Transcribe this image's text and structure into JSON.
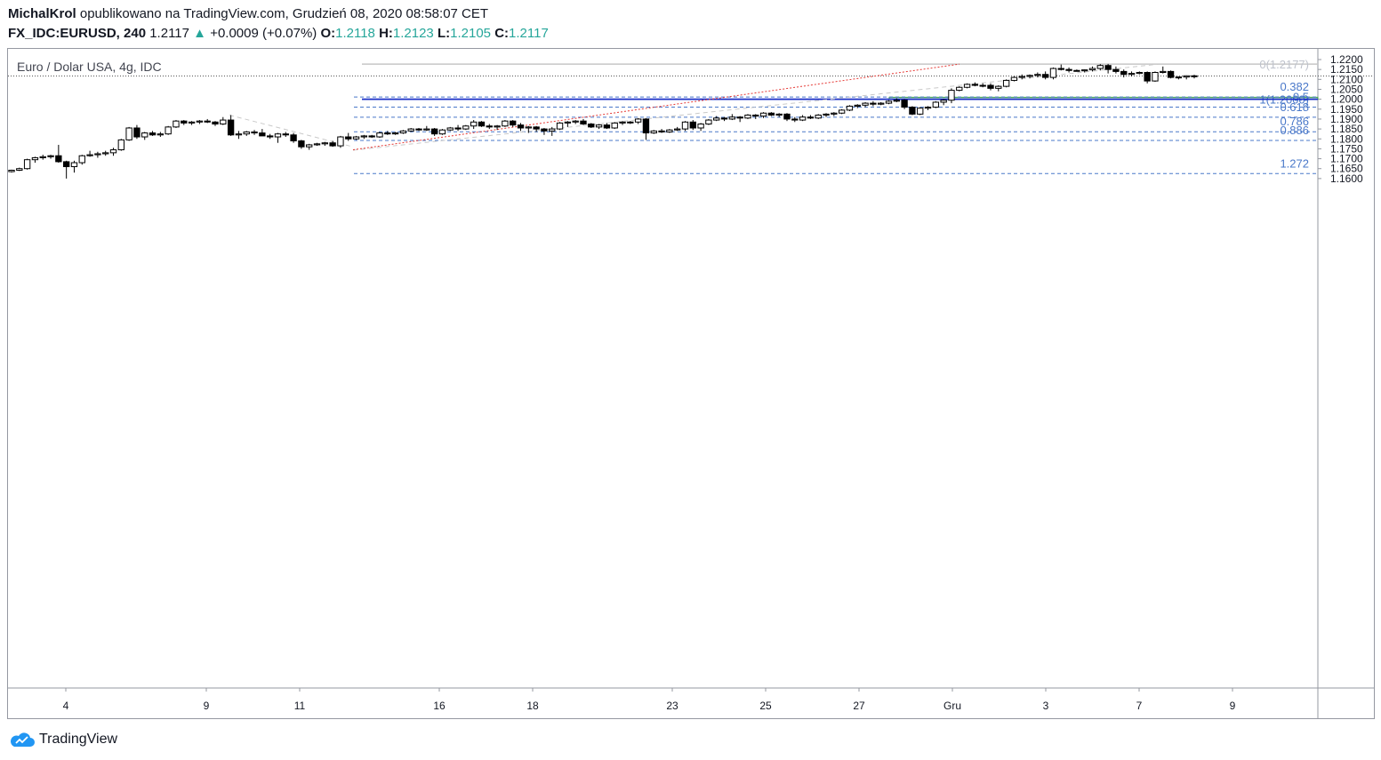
{
  "header": {
    "author": "MichalKrol",
    "published_text": "opublikowano na TradingView.com, Grudzień 08, 2020 08:58:07 CET",
    "symbol": "FX_IDC:EURUSD, 240",
    "last": "1.2117",
    "change": "+0.0009 (+0.07%)",
    "o_label": "O:",
    "o": "1.2118",
    "h_label": "H:",
    "h": "1.2123",
    "l_label": "L:",
    "l": "1.2105",
    "c_label": "C:",
    "c": "1.2117"
  },
  "chart_title": "Euro / Dolar USA, 4g, IDC",
  "footer": {
    "brand": "TradingView"
  },
  "colors": {
    "up_fill": "#ffffff",
    "down_fill": "#000000",
    "blue_level": "#1b2fc7",
    "fib": "#4a78c9",
    "zone_fill": "#bfe6bf",
    "zone_border": "#3fa34d",
    "red_line": "#e53935",
    "grey_line": "#c7c7c7",
    "accent_up": "#26a69a"
  },
  "chart_data": {
    "type": "candlestick",
    "ylim": [
      1.157,
      1.2215
    ],
    "y_ticks": [
      "1.2200",
      "1.2150",
      "1.2100",
      "1.2050",
      "1.2000",
      "1.1950",
      "1.1900",
      "1.1850",
      "1.1800",
      "1.1750",
      "1.1700",
      "1.1650",
      "1.1600"
    ],
    "x_ticks": [
      "4",
      "9",
      "11",
      "16",
      "18",
      "23",
      "25",
      "27",
      "Gru",
      "3",
      "7",
      "9"
    ],
    "fib_levels": [
      {
        "label": "0(1.2177)",
        "price": 1.2177
      },
      {
        "label": "0.382",
        "price": 1.2011
      },
      {
        "label": "1(1.2000)",
        "price": 1.2
      },
      {
        "label": "0.5",
        "price": 1.196
      },
      {
        "label": "0.618",
        "price": 1.1909
      },
      {
        "label": "0.786",
        "price": 1.1836
      },
      {
        "label": "0.886",
        "price": 1.1792
      },
      {
        "label": "1.272",
        "price": 1.1625
      }
    ],
    "horizontal_level": 1.2,
    "current_price": 1.2117,
    "zone": {
      "from": 1.2,
      "to": 1.201
    },
    "candles": [
      [
        1.1635,
        1.1645,
        1.163,
        1.1642
      ],
      [
        1.1642,
        1.1655,
        1.1638,
        1.165
      ],
      [
        1.165,
        1.17,
        1.1645,
        1.1695
      ],
      [
        1.1695,
        1.171,
        1.168,
        1.1705
      ],
      [
        1.1705,
        1.172,
        1.1695,
        1.171
      ],
      [
        1.171,
        1.172,
        1.17,
        1.1715
      ],
      [
        1.1715,
        1.177,
        1.168,
        1.1685
      ],
      [
        1.1685,
        1.169,
        1.16,
        1.166
      ],
      [
        1.166,
        1.169,
        1.163,
        1.168
      ],
      [
        1.168,
        1.172,
        1.167,
        1.1715
      ],
      [
        1.1715,
        1.174,
        1.171,
        1.172
      ],
      [
        1.172,
        1.1735,
        1.1705,
        1.1725
      ],
      [
        1.1725,
        1.174,
        1.1715,
        1.173
      ],
      [
        1.173,
        1.1755,
        1.1715,
        1.1745
      ],
      [
        1.1745,
        1.18,
        1.174,
        1.1795
      ],
      [
        1.1795,
        1.186,
        1.179,
        1.1855
      ],
      [
        1.1855,
        1.187,
        1.18,
        1.181
      ],
      [
        1.181,
        1.1835,
        1.1795,
        1.183
      ],
      [
        1.183,
        1.184,
        1.1815,
        1.182
      ],
      [
        1.182,
        1.1835,
        1.181,
        1.1825
      ],
      [
        1.1825,
        1.1865,
        1.182,
        1.186
      ],
      [
        1.186,
        1.1895,
        1.1855,
        1.189
      ],
      [
        1.189,
        1.1895,
        1.187,
        1.188
      ],
      [
        1.188,
        1.189,
        1.187,
        1.1885
      ],
      [
        1.1885,
        1.1895,
        1.1875,
        1.189
      ],
      [
        1.189,
        1.19,
        1.188,
        1.1885
      ],
      [
        1.1885,
        1.189,
        1.1865,
        1.1875
      ],
      [
        1.1875,
        1.191,
        1.187,
        1.1895
      ],
      [
        1.1895,
        1.192,
        1.1815,
        1.182
      ],
      [
        1.182,
        1.184,
        1.18,
        1.1825
      ],
      [
        1.1825,
        1.184,
        1.1815,
        1.1835
      ],
      [
        1.1835,
        1.1845,
        1.182,
        1.183
      ],
      [
        1.183,
        1.185,
        1.182,
        1.1815
      ],
      [
        1.1815,
        1.1825,
        1.18,
        1.181
      ],
      [
        1.181,
        1.183,
        1.178,
        1.1825
      ],
      [
        1.1825,
        1.1835,
        1.181,
        1.182
      ],
      [
        1.182,
        1.183,
        1.178,
        1.179
      ],
      [
        1.179,
        1.1795,
        1.175,
        1.176
      ],
      [
        1.176,
        1.1775,
        1.1745,
        1.177
      ],
      [
        1.177,
        1.178,
        1.1765,
        1.1775
      ],
      [
        1.1775,
        1.1785,
        1.1765,
        1.178
      ],
      [
        1.178,
        1.179,
        1.176,
        1.1765
      ],
      [
        1.1765,
        1.1815,
        1.1755,
        1.181
      ],
      [
        1.181,
        1.183,
        1.179,
        1.18
      ],
      [
        1.18,
        1.1815,
        1.1795,
        1.181
      ],
      [
        1.181,
        1.182,
        1.18,
        1.1815
      ],
      [
        1.1815,
        1.182,
        1.1805,
        1.181
      ],
      [
        1.181,
        1.1835,
        1.1805,
        1.183
      ],
      [
        1.183,
        1.184,
        1.182,
        1.1825
      ],
      [
        1.1825,
        1.1835,
        1.182,
        1.183
      ],
      [
        1.183,
        1.1845,
        1.1825,
        1.184
      ],
      [
        1.184,
        1.1855,
        1.1835,
        1.185
      ],
      [
        1.185,
        1.1855,
        1.184,
        1.1845
      ],
      [
        1.1845,
        1.1865,
        1.184,
        1.185
      ],
      [
        1.185,
        1.1855,
        1.1815,
        1.1825
      ],
      [
        1.1825,
        1.185,
        1.182,
        1.1845
      ],
      [
        1.1845,
        1.186,
        1.184,
        1.1855
      ],
      [
        1.1855,
        1.187,
        1.184,
        1.185
      ],
      [
        1.185,
        1.187,
        1.1845,
        1.1865
      ],
      [
        1.1865,
        1.1895,
        1.185,
        1.1885
      ],
      [
        1.1885,
        1.189,
        1.186,
        1.1865
      ],
      [
        1.1865,
        1.1875,
        1.185,
        1.186
      ],
      [
        1.186,
        1.187,
        1.1845,
        1.1865
      ],
      [
        1.1865,
        1.1895,
        1.186,
        1.189
      ],
      [
        1.189,
        1.1895,
        1.186,
        1.187
      ],
      [
        1.187,
        1.188,
        1.184,
        1.1855
      ],
      [
        1.1855,
        1.1865,
        1.183,
        1.186
      ],
      [
        1.186,
        1.1865,
        1.1835,
        1.185
      ],
      [
        1.185,
        1.1855,
        1.182,
        1.184
      ],
      [
        1.184,
        1.186,
        1.1815,
        1.185
      ],
      [
        1.185,
        1.1885,
        1.1845,
        1.188
      ],
      [
        1.188,
        1.189,
        1.186,
        1.1885
      ],
      [
        1.1885,
        1.1895,
        1.1875,
        1.189
      ],
      [
        1.189,
        1.19,
        1.187,
        1.1875
      ],
      [
        1.1875,
        1.188,
        1.1855,
        1.186
      ],
      [
        1.186,
        1.1875,
        1.185,
        1.187
      ],
      [
        1.187,
        1.188,
        1.185,
        1.1855
      ],
      [
        1.1855,
        1.1885,
        1.185,
        1.188
      ],
      [
        1.188,
        1.189,
        1.187,
        1.1885
      ],
      [
        1.1885,
        1.189,
        1.1875,
        1.1885
      ],
      [
        1.1885,
        1.1905,
        1.1875,
        1.19
      ],
      [
        1.19,
        1.1905,
        1.1795,
        1.183
      ],
      [
        1.183,
        1.1845,
        1.1825,
        1.184
      ],
      [
        1.184,
        1.185,
        1.183,
        1.1835
      ],
      [
        1.1835,
        1.185,
        1.183,
        1.1845
      ],
      [
        1.1845,
        1.186,
        1.184,
        1.185
      ],
      [
        1.185,
        1.189,
        1.184,
        1.1885
      ],
      [
        1.1885,
        1.1895,
        1.1845,
        1.1855
      ],
      [
        1.1855,
        1.188,
        1.184,
        1.1875
      ],
      [
        1.1875,
        1.19,
        1.187,
        1.1895
      ],
      [
        1.1895,
        1.1915,
        1.189,
        1.1905
      ],
      [
        1.1905,
        1.191,
        1.189,
        1.19
      ],
      [
        1.19,
        1.1925,
        1.1895,
        1.191
      ],
      [
        1.191,
        1.1915,
        1.1885,
        1.1905
      ],
      [
        1.1905,
        1.1925,
        1.19,
        1.192
      ],
      [
        1.192,
        1.1925,
        1.19,
        1.1915
      ],
      [
        1.1915,
        1.1935,
        1.1905,
        1.193
      ],
      [
        1.193,
        1.1935,
        1.1915,
        1.192
      ],
      [
        1.192,
        1.193,
        1.191,
        1.1925
      ],
      [
        1.1925,
        1.193,
        1.189,
        1.19
      ],
      [
        1.19,
        1.191,
        1.1885,
        1.1895
      ],
      [
        1.1895,
        1.192,
        1.189,
        1.191
      ],
      [
        1.191,
        1.192,
        1.19,
        1.1905
      ],
      [
        1.1905,
        1.1925,
        1.19,
        1.192
      ],
      [
        1.192,
        1.193,
        1.191,
        1.1925
      ],
      [
        1.1925,
        1.1935,
        1.1915,
        1.193
      ],
      [
        1.193,
        1.195,
        1.1925,
        1.1945
      ],
      [
        1.1945,
        1.197,
        1.194,
        1.1965
      ],
      [
        1.1965,
        1.1975,
        1.1955,
        1.197
      ],
      [
        1.197,
        1.1985,
        1.196,
        1.198
      ],
      [
        1.198,
        1.199,
        1.1965,
        1.1975
      ],
      [
        1.1975,
        1.1985,
        1.197,
        1.198
      ],
      [
        1.198,
        1.1995,
        1.1975,
        1.199
      ],
      [
        1.199,
        1.2005,
        1.1985,
        1.1995
      ],
      [
        1.1995,
        1.2,
        1.195,
        1.196
      ],
      [
        1.196,
        1.1965,
        1.192,
        1.1925
      ],
      [
        1.1925,
        1.196,
        1.192,
        1.1955
      ],
      [
        1.1955,
        1.1965,
        1.1945,
        1.196
      ],
      [
        1.196,
        1.199,
        1.1955,
        1.1985
      ],
      [
        1.1985,
        1.2,
        1.197,
        1.1995
      ],
      [
        1.1995,
        1.2055,
        1.198,
        1.2045
      ],
      [
        1.2045,
        1.2065,
        1.204,
        1.206
      ],
      [
        1.206,
        1.208,
        1.2055,
        1.2075
      ],
      [
        1.2075,
        1.2085,
        1.2065,
        1.207
      ],
      [
        1.207,
        1.208,
        1.206,
        1.207
      ],
      [
        1.207,
        1.208,
        1.2045,
        1.2055
      ],
      [
        1.2055,
        1.207,
        1.204,
        1.2065
      ],
      [
        1.2065,
        1.21,
        1.206,
        1.2095
      ],
      [
        1.2095,
        1.2115,
        1.209,
        1.211
      ],
      [
        1.211,
        1.2125,
        1.21,
        1.2115
      ],
      [
        1.2115,
        1.2125,
        1.2105,
        1.212
      ],
      [
        1.212,
        1.2135,
        1.211,
        1.2125
      ],
      [
        1.2125,
        1.214,
        1.21,
        1.211
      ],
      [
        1.211,
        1.216,
        1.21,
        1.2155
      ],
      [
        1.2155,
        1.2175,
        1.2145,
        1.215
      ],
      [
        1.215,
        1.216,
        1.2135,
        1.2145
      ],
      [
        1.2145,
        1.215,
        1.214,
        1.2143
      ],
      [
        1.2143,
        1.215,
        1.2135,
        1.2148
      ],
      [
        1.2148,
        1.2165,
        1.214,
        1.2155
      ],
      [
        1.2155,
        1.2177,
        1.2145,
        1.217
      ],
      [
        1.217,
        1.2178,
        1.213,
        1.215
      ],
      [
        1.215,
        1.2165,
        1.213,
        1.214
      ],
      [
        1.214,
        1.215,
        1.211,
        1.2125
      ],
      [
        1.2125,
        1.214,
        1.2115,
        1.213
      ],
      [
        1.213,
        1.214,
        1.2125,
        1.2135
      ],
      [
        1.2135,
        1.214,
        1.208,
        1.2092
      ],
      [
        1.2092,
        1.214,
        1.2088,
        1.2135
      ],
      [
        1.2135,
        1.2165,
        1.213,
        1.214
      ],
      [
        1.214,
        1.2145,
        1.2105,
        1.211
      ],
      [
        1.211,
        1.2115,
        1.21,
        1.2112
      ],
      [
        1.2112,
        1.212,
        1.21,
        1.2118
      ],
      [
        1.2118,
        1.2123,
        1.2105,
        1.2117
      ]
    ]
  }
}
